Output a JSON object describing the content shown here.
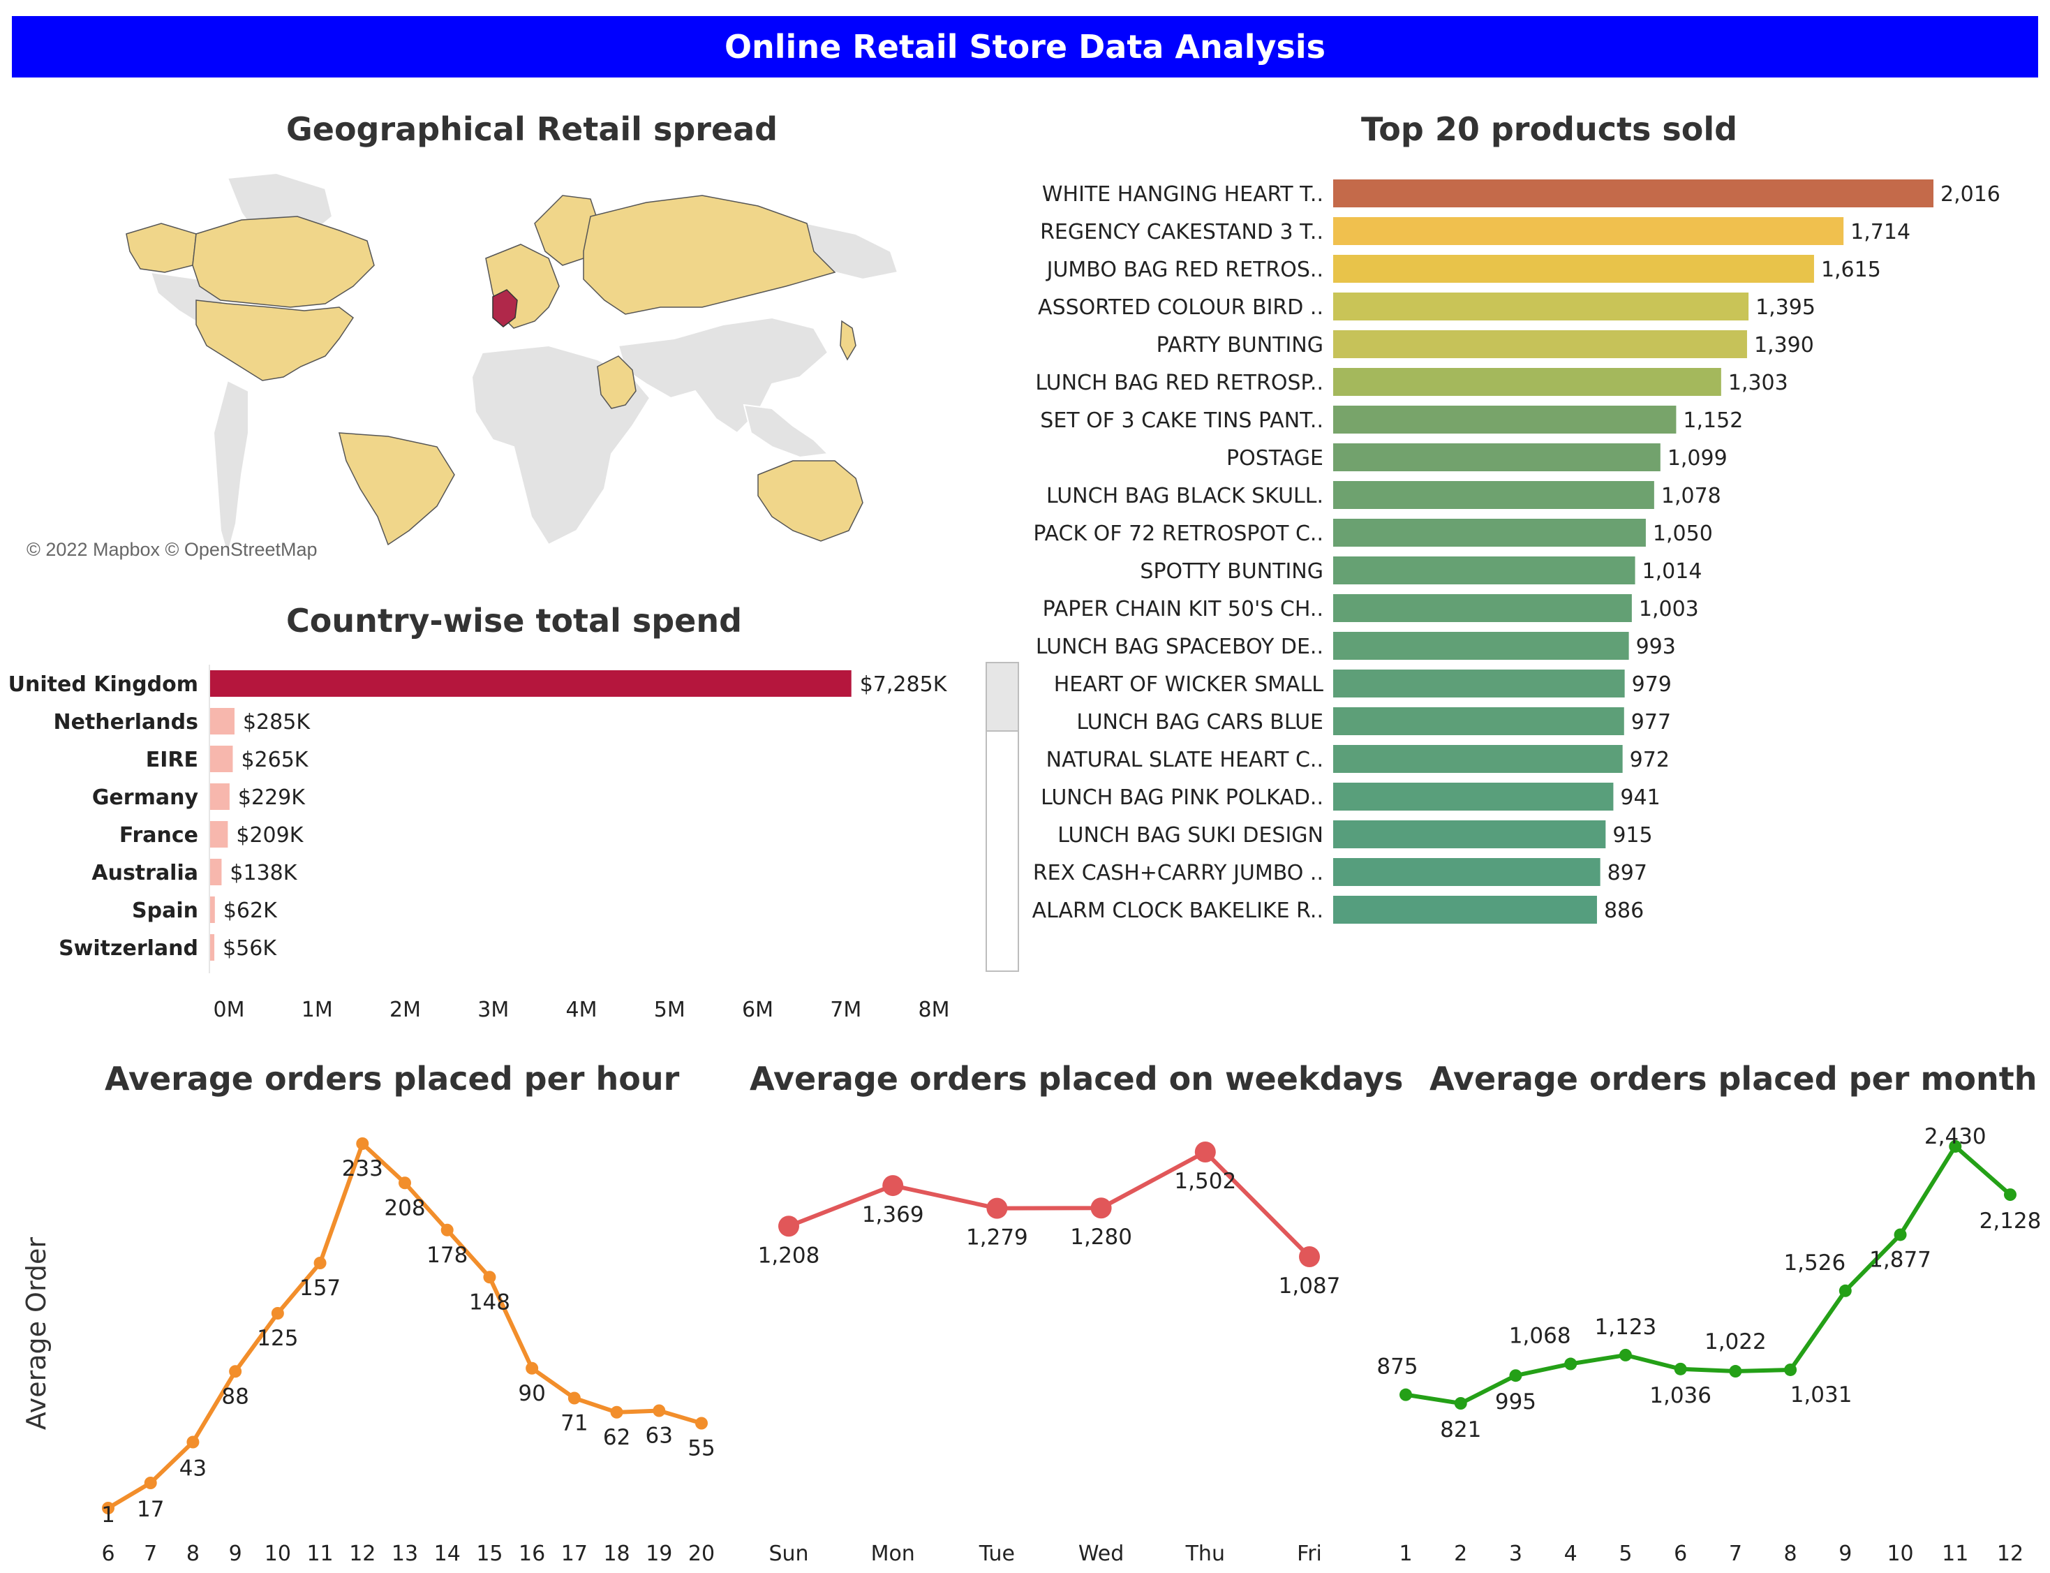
{
  "header": {
    "title": "Online Retail Store Data Analysis",
    "bg_color": "#0000ff"
  },
  "map": {
    "title": "Geographical Retail spread",
    "credit": "© 2022 Mapbox © OpenStreetMap",
    "colors": {
      "customer": "#f0d68a",
      "highlight": "#b0284a",
      "other": "#e3e3e3",
      "water": "#ffffff"
    }
  },
  "country_chart": {
    "title": "Country-wise total spend",
    "chart_data": {
      "type": "bar",
      "orientation": "horizontal",
      "title": "Country-wise total spend",
      "categories": [
        "United Kingdom",
        "Netherlands",
        "EIRE",
        "Germany",
        "France",
        "Australia",
        "Spain",
        "Switzerland"
      ],
      "values": [
        7285,
        285,
        265,
        229,
        209,
        138,
        62,
        56
      ],
      "units": "thousands USD",
      "labels": [
        "$7,285K",
        "$285K",
        "$265K",
        "$229K",
        "$209K",
        "$138K",
        "$62K",
        "$56K"
      ],
      "ticks": [
        "0M",
        "1M",
        "2M",
        "3M",
        "4M",
        "5M",
        "6M",
        "7M",
        "8M"
      ],
      "xlim": [
        0,
        8000
      ],
      "colors": [
        "#b5163d",
        "#f7b7ad",
        "#f7b7ad",
        "#f7b7ad",
        "#f7b7ad",
        "#f7b7ad",
        "#f7b7ad",
        "#f7b7ad"
      ]
    }
  },
  "products_chart": {
    "title": "Top 20 products sold",
    "chart_data": {
      "type": "bar",
      "orientation": "horizontal",
      "title": "Top 20 products sold",
      "categories": [
        "WHITE HANGING HEART T..",
        "REGENCY CAKESTAND 3 T..",
        "JUMBO BAG RED RETROS..",
        "ASSORTED COLOUR BIRD ..",
        "PARTY BUNTING",
        "LUNCH BAG RED RETROSP..",
        "SET OF 3 CAKE TINS PANT..",
        "POSTAGE",
        "LUNCH BAG  BLACK SKULL.",
        "PACK OF 72 RETROSPOT C..",
        "SPOTTY BUNTING",
        "PAPER CHAIN KIT 50'S CH..",
        "LUNCH BAG SPACEBOY DE..",
        "HEART OF WICKER SMALL",
        "LUNCH BAG CARS BLUE",
        "NATURAL SLATE HEART C..",
        "LUNCH BAG PINK POLKAD..",
        "LUNCH BAG SUKI DESIGN",
        "REX CASH+CARRY JUMBO ..",
        "ALARM CLOCK BAKELIKE R.."
      ],
      "values": [
        2016,
        1714,
        1615,
        1395,
        1390,
        1303,
        1152,
        1099,
        1078,
        1050,
        1014,
        1003,
        993,
        979,
        977,
        972,
        941,
        915,
        897,
        886
      ],
      "labels": [
        "2,016",
        "1,714",
        "1,615",
        "1,395",
        "1,390",
        "1,303",
        "1,152",
        "1,099",
        "1,078",
        "1,050",
        "1,014",
        "1,003",
        "993",
        "979",
        "977",
        "972",
        "941",
        "915",
        "897",
        "886"
      ],
      "colors": [
        "#c46a4a",
        "#f0c04e",
        "#e8c34a",
        "#c9c457",
        "#c6c259",
        "#a4b85c",
        "#78a46a",
        "#72a26d",
        "#6ea26f",
        "#6aa171",
        "#66a173",
        "#63a074",
        "#61a076",
        "#5e9f78",
        "#5d9f78",
        "#5c9f79",
        "#599f7b",
        "#579e7c",
        "#569e7d",
        "#559e7e"
      ]
    }
  },
  "hour_chart": {
    "title": "Average orders placed per hour",
    "chart_data": {
      "type": "line",
      "title": "Average orders placed per hour",
      "ylabel": "Average Order",
      "x": [
        "6",
        "7",
        "8",
        "9",
        "10",
        "11",
        "12",
        "13",
        "14",
        "15",
        "16",
        "17",
        "18",
        "19",
        "20"
      ],
      "values": [
        1,
        17,
        43,
        88,
        125,
        157,
        233,
        208,
        178,
        148,
        90,
        71,
        62,
        63,
        55
      ],
      "labels": [
        "1",
        "17",
        "43",
        "88",
        "125",
        "157",
        "233",
        "208",
        "178",
        "148",
        "90",
        "71",
        "62",
        "63",
        "55"
      ],
      "ylim": [
        0,
        240
      ],
      "color": "#f28e2b"
    }
  },
  "weekday_chart": {
    "title": "Average orders placed on weekdays",
    "chart_data": {
      "type": "line",
      "title": "Average orders placed on weekdays",
      "x": [
        "Sun",
        "Mon",
        "Tue",
        "Wed",
        "Thu",
        "Fri"
      ],
      "values": [
        1208,
        1369,
        1279,
        1280,
        1502,
        1087
      ],
      "labels": [
        "1,208",
        "1,369",
        "1,279",
        "1,280",
        "1,502",
        "1,087"
      ],
      "color": "#e15759"
    }
  },
  "month_chart": {
    "title": "Average orders placed per month",
    "chart_data": {
      "type": "line",
      "title": "Average orders placed per month",
      "x": [
        "1",
        "2",
        "3",
        "4",
        "5",
        "6",
        "7",
        "8",
        "9",
        "10",
        "11",
        "12"
      ],
      "values": [
        875,
        821,
        995,
        1068,
        1123,
        1036,
        1022,
        1031,
        1526,
        1877,
        2430,
        2128
      ],
      "labels": [
        "875",
        "821",
        "995",
        "1,068",
        "1,123",
        "1,036",
        "1,022",
        "1,031",
        "1,526",
        "1,877",
        "2,430",
        "2,128"
      ],
      "color": "#24a017"
    }
  }
}
